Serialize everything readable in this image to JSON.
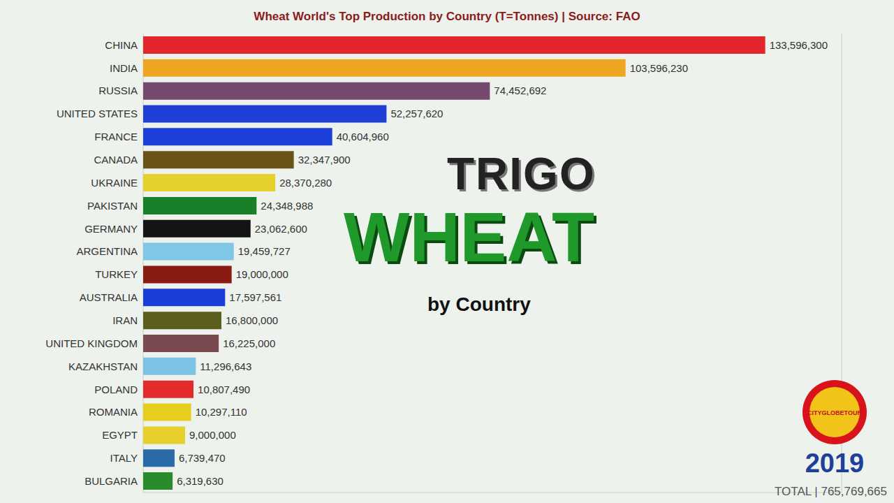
{
  "chart_data": {
    "type": "bar",
    "title": "Wheat World's Top Production by Country (T=Tonnes) | Source: FAO",
    "orientation": "horizontal",
    "categories": [
      "CHINA",
      "INDIA",
      "RUSSIA",
      "UNITED STATES",
      "FRANCE",
      "CANADA",
      "UKRAINE",
      "PAKISTAN",
      "GERMANY",
      "ARGENTINA",
      "TURKEY",
      "AUSTRALIA",
      "IRAN",
      "UNITED KINGDOM",
      "KAZAKHSTAN",
      "POLAND",
      "ROMANIA",
      "EGYPT",
      "ITALY",
      "BULGARIA"
    ],
    "values": [
      133596300,
      103596230,
      74452692,
      52257620,
      40604960,
      32347900,
      28370280,
      24348988,
      23062600,
      19459727,
      19000000,
      17597561,
      16800000,
      16225000,
      11296643,
      10807490,
      10297110,
      9000000,
      6739470,
      6319630
    ],
    "value_labels": [
      "133,596,300",
      "103,596,230",
      "74,452,692",
      "52,257,620",
      "40,604,960",
      "32,347,900",
      "28,370,280",
      "24,348,988",
      "23,062,600",
      "19,459,727",
      "19,000,000",
      "17,597,561",
      "16,800,000",
      "16,225,000",
      "11,296,643",
      "10,807,490",
      "10,297,110",
      "9,000,000",
      "6,739,470",
      "6,319,630"
    ],
    "colors": [
      "#e3262b",
      "#eea51f",
      "#76496f",
      "#1f3fd6",
      "#1b3fd8",
      "#6a5319",
      "#e6d02b",
      "#178029",
      "#141414",
      "#80c6e6",
      "#8a1b12",
      "#1b3ed8",
      "#5b5e1d",
      "#7b4a50",
      "#7cc2e4",
      "#e32b2b",
      "#e6cd1e",
      "#e8d02c",
      "#2a6aa6",
      "#2a8a2e"
    ],
    "xlim": [
      0,
      150000000
    ],
    "xticks": [
      0,
      50000000,
      100000000,
      150000000
    ],
    "grid": true,
    "tick_labels": "y",
    "data_labels": true,
    "annotations": {
      "overlay_top": "TRIGO",
      "overlay_main": "WHEAT",
      "overlay_sub": "by Country",
      "logo": "CITYGLOBETOUR",
      "year": "2019",
      "total": "TOTAL | 765,769,665"
    }
  }
}
